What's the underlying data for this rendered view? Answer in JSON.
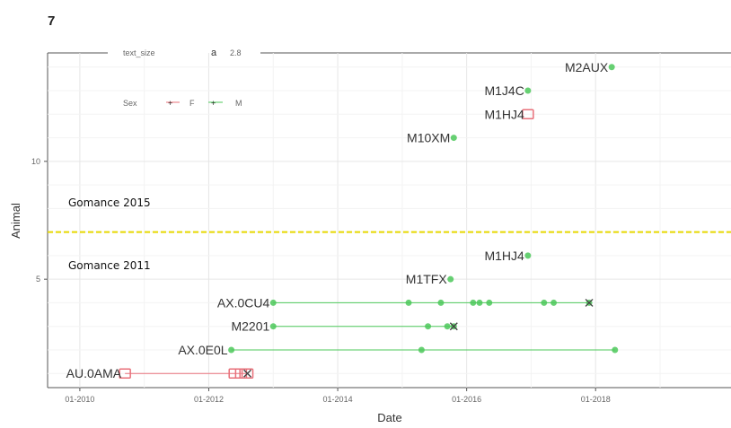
{
  "chart_data": {
    "type": "scatter",
    "panel_title": "7",
    "xlabel": "Date",
    "ylabel": "Animal",
    "x_ticks": [
      "01-2010",
      "01-2012",
      "01-2014",
      "01-2016",
      "01-2018"
    ],
    "x_tick_years": [
      2010,
      2012,
      2014,
      2016,
      2018
    ],
    "y_ticks": [
      "5",
      "10"
    ],
    "y_tick_values": [
      5,
      10
    ],
    "xlim_years": [
      2009.5,
      2020.1
    ],
    "ylim": [
      0.4,
      14.6
    ],
    "grid": true,
    "top_annotation": {
      "label": "text_size",
      "symbol": "a",
      "value": "2.8"
    },
    "legend": {
      "title": "Sex",
      "position": "top-left",
      "entries": [
        "F",
        "M"
      ]
    },
    "sex_colors": {
      "F": "#e8707a",
      "M": "#4cc85a"
    },
    "reference_line": {
      "y": 7,
      "color": "#e6d800",
      "style": "dashed"
    },
    "annotations": [
      "Gomance 2015",
      "Gomance 2011"
    ],
    "animals": [
      {
        "label": "AU.0AMA",
        "y": 1,
        "sex": "F",
        "points": [
          2010.7,
          2012.4,
          2012.5,
          2012.6
        ],
        "end_marker": "x"
      },
      {
        "label": "AX.0E0L",
        "y": 2,
        "sex": "M",
        "points": [
          2012.35,
          2015.3,
          2018.3
        ]
      },
      {
        "label": "M2201",
        "y": 3,
        "sex": "M",
        "points": [
          2013.0,
          2015.4,
          2015.7,
          2015.8
        ],
        "end_marker": "x"
      },
      {
        "label": "AX.0CU4",
        "y": 4,
        "sex": "M",
        "points": [
          2013.0,
          2015.1,
          2015.6,
          2016.1,
          2016.2,
          2016.35,
          2017.2,
          2017.35,
          2017.9
        ],
        "end_marker": "x"
      },
      {
        "label": "M1TFX",
        "y": 5,
        "sex": "M",
        "points": [
          2015.75
        ]
      },
      {
        "label": "M1HJ4",
        "y": 6,
        "sex": "M",
        "points": [
          2016.95
        ]
      },
      {
        "label": "M10XM",
        "y": 11,
        "sex": "M",
        "points": [
          2015.8
        ]
      },
      {
        "label": "M1HJ4",
        "y": 12,
        "sex": "F",
        "points": [
          2016.95
        ]
      },
      {
        "label": "M1J4C",
        "y": 13,
        "sex": "M",
        "points": [
          2016.95
        ]
      },
      {
        "label": "M2AUX",
        "y": 14,
        "sex": "M",
        "points": [
          2018.25
        ]
      }
    ]
  }
}
